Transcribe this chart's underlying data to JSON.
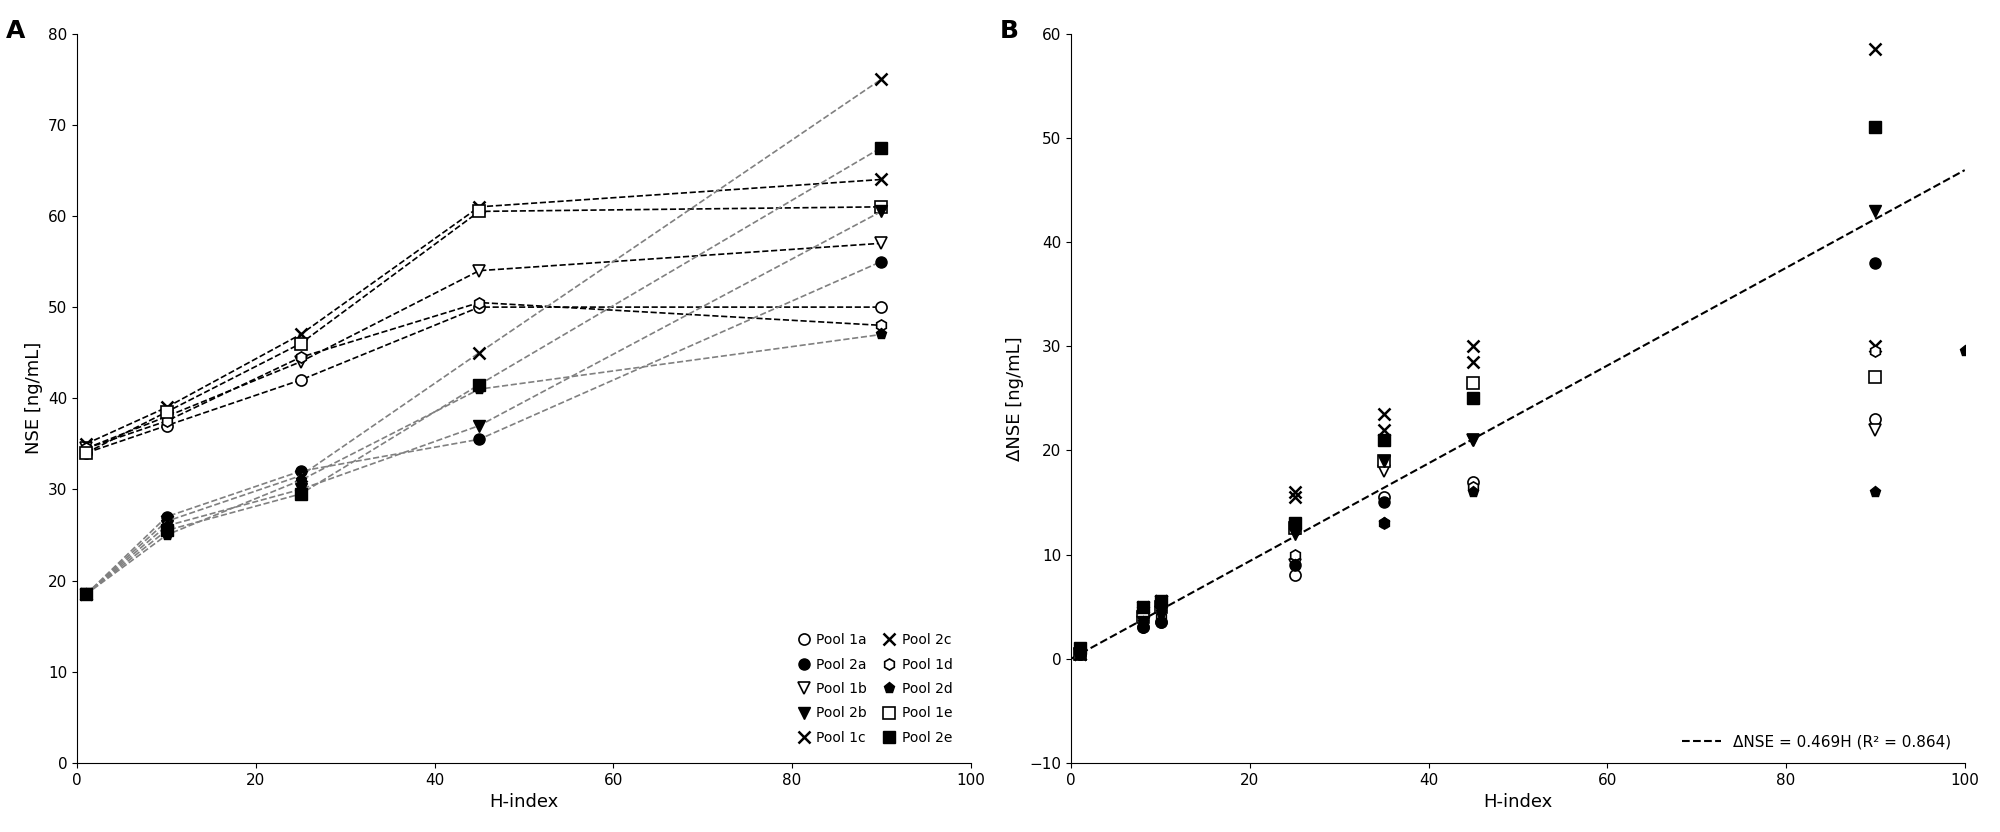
{
  "panel_A": {
    "title": "A",
    "xlabel": "H-index",
    "ylabel": "NSE [ng/mL]",
    "ylim": [
      0,
      80
    ],
    "xlim": [
      0,
      100
    ],
    "yticks": [
      0,
      10,
      20,
      30,
      40,
      50,
      60,
      70,
      80
    ],
    "xticks": [
      0,
      20,
      40,
      60,
      80,
      100
    ],
    "series": {
      "Pool1a": {
        "x": [
          1,
          10,
          25,
          45,
          90
        ],
        "y": [
          34.0,
          37.0,
          42.0,
          50.0,
          50.0
        ],
        "marker": "o",
        "filled": false,
        "line_color": "black",
        "line_style": "--"
      },
      "Pool1b": {
        "x": [
          1,
          10,
          25,
          45,
          90
        ],
        "y": [
          34.5,
          38.0,
          44.0,
          54.0,
          57.0
        ],
        "marker": "v",
        "filled": false,
        "line_color": "black",
        "line_style": "--"
      },
      "Pool1c": {
        "x": [
          1,
          10,
          25,
          45,
          90
        ],
        "y": [
          35.0,
          39.0,
          47.0,
          61.0,
          64.0
        ],
        "marker": "x",
        "filled": false,
        "line_color": "black",
        "line_style": "--"
      },
      "Pool1d": {
        "x": [
          1,
          10,
          25,
          45,
          90
        ],
        "y": [
          34.5,
          37.5,
          44.5,
          50.5,
          48.0
        ],
        "marker": "h",
        "filled": false,
        "line_color": "black",
        "line_style": "--"
      },
      "Pool1e": {
        "x": [
          1,
          10,
          25,
          45,
          90
        ],
        "y": [
          34.0,
          38.5,
          46.0,
          60.5,
          61.0
        ],
        "marker": "s",
        "filled": false,
        "line_color": "black",
        "line_style": "--"
      },
      "Pool2a": {
        "x": [
          1,
          10,
          25,
          45,
          90
        ],
        "y": [
          18.5,
          27.0,
          32.0,
          35.5,
          55.0
        ],
        "marker": "o",
        "filled": true,
        "line_color": "gray",
        "line_style": "--"
      },
      "Pool2b": {
        "x": [
          1,
          10,
          25,
          45,
          90
        ],
        "y": [
          18.5,
          26.0,
          30.0,
          37.0,
          60.5
        ],
        "marker": "v",
        "filled": true,
        "line_color": "gray",
        "line_style": "--"
      },
      "Pool2c": {
        "x": [
          1,
          10,
          25,
          45,
          90
        ],
        "y": [
          18.5,
          26.5,
          31.5,
          45.0,
          75.0
        ],
        "marker": "x",
        "filled": true,
        "line_color": "gray",
        "line_style": "--"
      },
      "Pool2d": {
        "x": [
          1,
          10,
          25,
          45,
          90
        ],
        "y": [
          18.5,
          25.0,
          31.0,
          41.0,
          47.0
        ],
        "marker": "p",
        "filled": true,
        "line_color": "gray",
        "line_style": "--"
      },
      "Pool2e": {
        "x": [
          1,
          10,
          25,
          45,
          90
        ],
        "y": [
          18.5,
          25.5,
          29.5,
          41.5,
          67.5
        ],
        "marker": "s",
        "filled": true,
        "line_color": "gray",
        "line_style": "--"
      }
    }
  },
  "panel_B": {
    "title": "B",
    "xlabel": "H-index",
    "ylabel": "ΔNSE [ng/mL]",
    "ylim": [
      -10,
      60
    ],
    "xlim": [
      0,
      100
    ],
    "yticks": [
      -10,
      0,
      10,
      20,
      30,
      40,
      50,
      60
    ],
    "xticks": [
      0,
      20,
      40,
      60,
      80,
      100
    ],
    "fit_label": "ΔNSE = 0.469H (R² = 0.864)",
    "fit_slope": 0.469,
    "series": {
      "Pool1a": {
        "x": [
          1,
          8,
          10,
          25,
          35,
          45,
          90
        ],
        "y": [
          0.5,
          3.0,
          3.5,
          8.0,
          15.5,
          17.0,
          23.0
        ],
        "marker": "o",
        "filled": false
      },
      "Pool1b": {
        "x": [
          1,
          8,
          10,
          25,
          35,
          45,
          90
        ],
        "y": [
          0.5,
          3.5,
          4.5,
          9.0,
          18.0,
          21.0,
          22.0
        ],
        "marker": "v",
        "filled": false
      },
      "Pool1c": {
        "x": [
          1,
          8,
          10,
          25,
          35,
          45,
          90
        ],
        "y": [
          0.5,
          4.5,
          5.5,
          15.5,
          22.0,
          28.5,
          30.0
        ],
        "marker": "x",
        "filled": false
      },
      "Pool1d": {
        "x": [
          1,
          8,
          10,
          25,
          35,
          45,
          90
        ],
        "y": [
          0.5,
          3.0,
          4.0,
          10.0,
          13.0,
          16.5,
          29.5
        ],
        "marker": "h",
        "filled": false
      },
      "Pool1e": {
        "x": [
          1,
          8,
          10,
          25,
          35,
          45,
          90
        ],
        "y": [
          0.5,
          4.0,
          5.0,
          12.5,
          19.0,
          26.5,
          27.0
        ],
        "marker": "s",
        "filled": false
      },
      "Pool2a": {
        "x": [
          1,
          8,
          10,
          25,
          35,
          45,
          90
        ],
        "y": [
          0.5,
          3.0,
          3.5,
          9.0,
          15.0,
          25.0,
          38.0
        ],
        "marker": "o",
        "filled": true
      },
      "Pool2b": {
        "x": [
          1,
          8,
          10,
          25,
          35,
          45,
          90
        ],
        "y": [
          0.5,
          3.5,
          4.5,
          12.0,
          19.0,
          21.0,
          43.0
        ],
        "marker": "v",
        "filled": true
      },
      "Pool2c": {
        "x": [
          1,
          8,
          10,
          25,
          35,
          45,
          90
        ],
        "y": [
          0.5,
          5.0,
          5.5,
          16.0,
          23.5,
          30.0,
          58.5
        ],
        "marker": "x",
        "filled": true
      },
      "Pool2d": {
        "x": [
          1,
          8,
          10,
          25,
          35,
          45,
          90,
          100
        ],
        "y": [
          0.5,
          3.5,
          4.5,
          9.0,
          13.0,
          16.0,
          16.0,
          29.5
        ],
        "marker": "p",
        "filled": true
      },
      "Pool2e": {
        "x": [
          1,
          8,
          10,
          25,
          35,
          45,
          90
        ],
        "y": [
          1.0,
          5.0,
          5.5,
          13.0,
          21.0,
          25.0,
          51.0
        ],
        "marker": "s",
        "filled": true
      }
    }
  },
  "legend": {
    "Pool1a": {
      "marker": "o",
      "filled": false,
      "label": "Pool 1a"
    },
    "Pool1b": {
      "marker": "v",
      "filled": false,
      "label": "Pool 1b"
    },
    "Pool1c": {
      "marker": "x",
      "filled": false,
      "label": "Pool 1c"
    },
    "Pool1d": {
      "marker": "h",
      "filled": false,
      "label": "Pool 1d"
    },
    "Pool1e": {
      "marker": "s",
      "filled": false,
      "label": "Pool 1e"
    },
    "Pool2a": {
      "marker": "o",
      "filled": true,
      "label": "Pool 2a"
    },
    "Pool2b": {
      "marker": "v",
      "filled": true,
      "label": "Pool 2b"
    },
    "Pool2c": {
      "marker": "x",
      "filled": true,
      "label": "Pool 2c"
    },
    "Pool2d": {
      "marker": "p",
      "filled": true,
      "label": "Pool 2d"
    },
    "Pool2e": {
      "marker": "s",
      "filled": true,
      "label": "Pool 2e"
    }
  }
}
